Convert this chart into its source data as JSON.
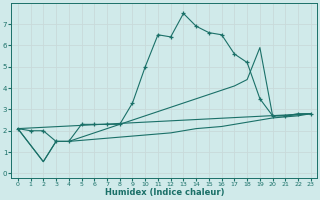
{
  "xlabel": "Humidex (Indice chaleur)",
  "background_color": "#d0eaea",
  "grid_color": "#c8dada",
  "line_color": "#1a7068",
  "xlim": [
    -0.5,
    23.5
  ],
  "ylim": [
    -0.2,
    8.0
  ],
  "xticks": [
    0,
    1,
    2,
    3,
    4,
    5,
    6,
    7,
    8,
    9,
    10,
    11,
    12,
    13,
    14,
    15,
    16,
    17,
    18,
    19,
    20,
    21,
    22,
    23
  ],
  "yticks": [
    0,
    1,
    2,
    3,
    4,
    5,
    6,
    7
  ],
  "line1_x": [
    0,
    1,
    2,
    3,
    4,
    5,
    6,
    7,
    8,
    9,
    10,
    11,
    12,
    13,
    14,
    15,
    16,
    17,
    18,
    19,
    20,
    21,
    22,
    23
  ],
  "line1_y": [
    2.1,
    2.0,
    2.0,
    1.5,
    1.5,
    2.3,
    2.3,
    2.3,
    2.3,
    3.3,
    5.0,
    6.5,
    6.4,
    7.5,
    6.9,
    6.6,
    6.5,
    5.6,
    5.2,
    3.5,
    2.7,
    2.7,
    2.8,
    2.8
  ],
  "line2_x": [
    0,
    2,
    3,
    4,
    5,
    6,
    7,
    8,
    9,
    10,
    11,
    12,
    13,
    14,
    15,
    16,
    17,
    18,
    19,
    20,
    21,
    22,
    23
  ],
  "line2_y": [
    2.1,
    0.55,
    1.5,
    1.5,
    1.55,
    1.6,
    1.65,
    1.7,
    1.75,
    1.8,
    1.85,
    1.9,
    2.0,
    2.1,
    2.15,
    2.2,
    2.3,
    2.4,
    2.5,
    2.6,
    2.65,
    2.7,
    2.8
  ],
  "line3_x": [
    0,
    2,
    3,
    4,
    5,
    6,
    7,
    8,
    9,
    10,
    11,
    12,
    13,
    14,
    15,
    16,
    17,
    18,
    19,
    20,
    21,
    22,
    23
  ],
  "line3_y": [
    2.1,
    0.55,
    1.5,
    1.5,
    1.7,
    1.9,
    2.1,
    2.3,
    2.5,
    2.7,
    2.9,
    3.1,
    3.3,
    3.5,
    3.7,
    3.9,
    4.1,
    4.4,
    5.9,
    2.7,
    2.7,
    2.75,
    2.8
  ],
  "line4_x": [
    0,
    23
  ],
  "line4_y": [
    2.1,
    2.8
  ]
}
